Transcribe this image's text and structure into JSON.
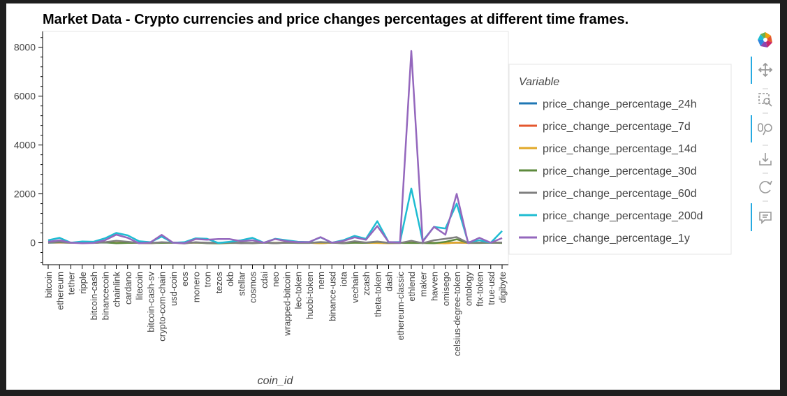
{
  "chart_data": {
    "type": "line",
    "title": "Market Data - Crypto currencies and price changes percentages at different time frames.",
    "xlabel": "coin_id",
    "ylabel": "",
    "ylim": [
      -900,
      8650
    ],
    "yticks": [
      "0",
      "2000",
      "4000",
      "6000",
      "8000"
    ],
    "legend_title": "Variable",
    "legend_placement": "right",
    "grid": false,
    "categories": [
      "bitcoin",
      "ethereum",
      "tether",
      "ripple",
      "bitcoin-cash",
      "binancecoin",
      "chainlink",
      "cardano",
      "litecoin",
      "bitcoin-cash-sv",
      "crypto-com-chain",
      "usd-coin",
      "eos",
      "monero",
      "tron",
      "tezos",
      "okb",
      "stellar",
      "cosmos",
      "cdai",
      "neo",
      "wrapped-bitcoin",
      "leo-token",
      "huobi-token",
      "nem",
      "binance-usd",
      "iota",
      "vechain",
      "zcash",
      "theta-token",
      "dash",
      "ethereum-classic",
      "ethlend",
      "maker",
      "havven",
      "omisego",
      "celsius-degree-token",
      "ontology",
      "ftx-token",
      "true-usd",
      "digibyte"
    ],
    "series": [
      {
        "name": "price_change_percentage_24h",
        "color": "#1f77b4",
        "values": [
          1,
          3,
          0,
          -1,
          2,
          5,
          -3,
          -2,
          1,
          2,
          -1,
          0,
          0,
          1,
          0,
          -2,
          1,
          0,
          -1,
          0,
          -1,
          1,
          0,
          -1,
          1,
          0,
          -1,
          1,
          0,
          -2,
          1,
          0,
          1,
          0,
          -3,
          0,
          2,
          -1,
          1,
          0,
          1
        ]
      },
      {
        "name": "price_change_percentage_7d",
        "color": "#e4572e",
        "values": [
          7,
          12,
          0,
          -8,
          -3,
          18,
          -9,
          8,
          -10,
          -15,
          8,
          0,
          -12,
          5,
          -7,
          -12,
          -2,
          -5,
          -4,
          0,
          -10,
          7,
          -1,
          -2,
          -16,
          0,
          -5,
          5,
          -5,
          -9,
          -14,
          -8,
          -2,
          -6,
          -10,
          -22,
          9,
          -6,
          -1,
          0,
          6
        ]
      },
      {
        "name": "price_change_percentage_14d",
        "color": "#e2a829",
        "values": [
          7,
          18,
          0,
          -8,
          -5,
          20,
          -10,
          10,
          -12,
          -18,
          10,
          0,
          -13,
          6,
          -8,
          -15,
          -3,
          -6,
          -5,
          0,
          -11,
          7,
          -2,
          -3,
          -18,
          0,
          -6,
          6,
          -6,
          -10,
          -16,
          -9,
          -3,
          -7,
          -12,
          -25,
          10,
          -7,
          -2,
          0,
          7
        ]
      },
      {
        "name": "price_change_percentage_30d",
        "color": "#5d8a3c",
        "values": [
          0,
          26,
          0,
          -5,
          -8,
          14,
          -20,
          -8,
          -6,
          -14,
          -8,
          0,
          -15,
          12,
          -22,
          -28,
          -10,
          -6,
          -18,
          0,
          -20,
          0,
          -10,
          -6,
          18,
          0,
          -20,
          2,
          -5,
          42,
          -8,
          -8,
          -12,
          -10,
          -20,
          35,
          140,
          -10,
          -12,
          0,
          -12
        ]
      },
      {
        "name": "price_change_percentage_60d",
        "color": "#7f7f7f",
        "values": [
          3,
          40,
          0,
          -10,
          -5,
          20,
          80,
          40,
          -10,
          -20,
          20,
          0,
          -30,
          20,
          -10,
          -10,
          10,
          -20,
          -10,
          0,
          -20,
          5,
          -5,
          -10,
          30,
          0,
          -15,
          60,
          10,
          50,
          -5,
          -15,
          80,
          -20,
          100,
          160,
          230,
          -10,
          10,
          0,
          10
        ]
      },
      {
        "name": "price_change_percentage_200d",
        "color": "#1fbcd2",
        "values": [
          100,
          200,
          0,
          50,
          40,
          180,
          400,
          300,
          60,
          20,
          250,
          0,
          20,
          180,
          160,
          -10,
          40,
          100,
          200,
          0,
          160,
          100,
          40,
          30,
          220,
          0,
          100,
          280,
          160,
          880,
          20,
          30,
          2220,
          70,
          650,
          580,
          1600,
          20,
          100,
          0,
          480
        ]
      },
      {
        "name": "price_change_percentage_1y",
        "color": "#9467bd",
        "values": [
          40,
          100,
          0,
          -20,
          -10,
          100,
          330,
          200,
          -20,
          10,
          320,
          0,
          -20,
          150,
          120,
          150,
          150,
          60,
          100,
          0,
          150,
          60,
          20,
          30,
          230,
          0,
          70,
          220,
          120,
          680,
          30,
          10,
          7850,
          40,
          650,
          330,
          2000,
          -10,
          200,
          0,
          190
        ]
      }
    ]
  },
  "toolbar": {
    "logo_icon": "bokeh-logo-icon",
    "tools": [
      {
        "name": "pan-tool",
        "icon": "move-arrows-icon",
        "active": true
      },
      {
        "name": "box-zoom-tool",
        "icon": "box-zoom-icon",
        "active": false
      },
      {
        "name": "wheel-zoom-tool",
        "icon": "wheel-zoom-icon",
        "active": true
      },
      {
        "name": "save-tool",
        "icon": "download-icon",
        "active": false
      },
      {
        "name": "reset-tool",
        "icon": "reset-icon",
        "active": false
      },
      {
        "name": "hover-tool",
        "icon": "hover-icon",
        "active": true
      }
    ]
  }
}
